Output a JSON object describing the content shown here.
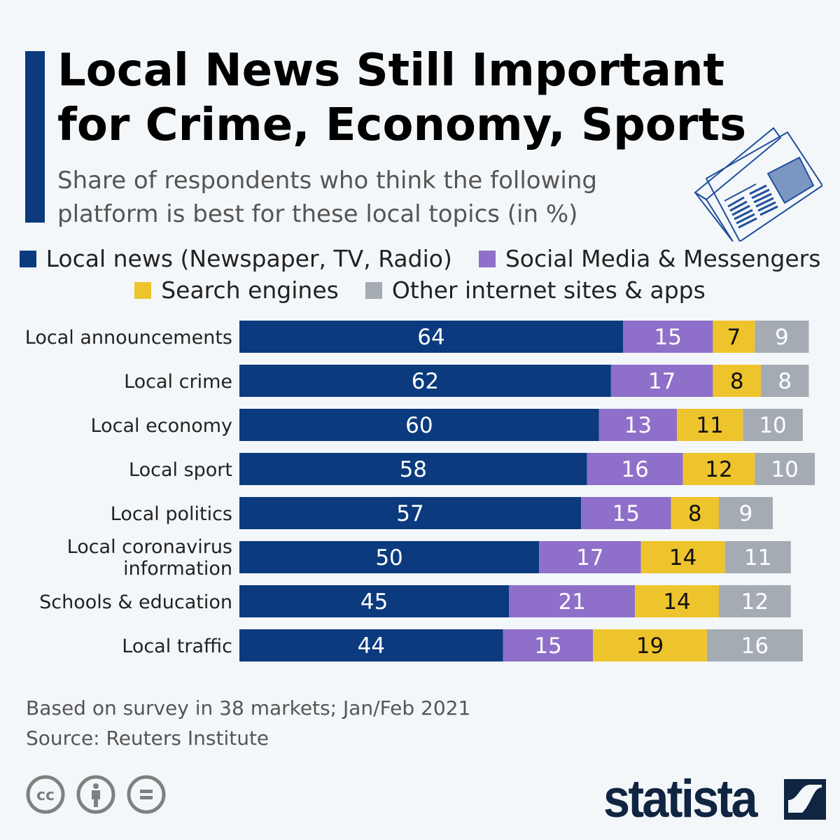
{
  "header": {
    "title": "Local News Still Important for Crime, Economy, Sports",
    "subtitle": "Share of respondents who think the following platform is best for these local topics (in %)",
    "icon": "newspaper-icon"
  },
  "chart_data": {
    "type": "bar",
    "orientation": "horizontal",
    "stacked": true,
    "title": "Local News Still Important for Crime, Economy, Sports",
    "subtitle": "Share of respondents who think the following platform is best for these local topics (in %)",
    "legend_position": "top",
    "grid": false,
    "categories": [
      "Local announcements",
      "Local crime",
      "Local economy",
      "Local sport",
      "Local politics",
      "Local coronavirus information",
      "Schools & education",
      "Local traffic"
    ],
    "series": [
      {
        "name": "Local news (Newspaper, TV, Radio)",
        "color": "#0b3a7e",
        "values": [
          64,
          62,
          60,
          58,
          57,
          50,
          45,
          44
        ]
      },
      {
        "name": "Social Media & Messengers",
        "color": "#8e6fc9",
        "values": [
          15,
          17,
          13,
          16,
          15,
          17,
          21,
          15
        ]
      },
      {
        "name": "Search engines",
        "color": "#eec42d",
        "values": [
          7,
          8,
          11,
          12,
          8,
          14,
          14,
          19
        ]
      },
      {
        "name": "Other internet sites & apps",
        "color": "#a4abb3",
        "values": [
          9,
          8,
          10,
          10,
          9,
          11,
          12,
          16
        ]
      }
    ]
  },
  "footer": {
    "note": "Based on survey in 38 markets; Jan/Feb 2021",
    "source": "Source: Reuters Institute",
    "license_icons": [
      "cc-icon",
      "by-attribution-icon",
      "no-derivatives-icon"
    ],
    "brand": "statista"
  }
}
